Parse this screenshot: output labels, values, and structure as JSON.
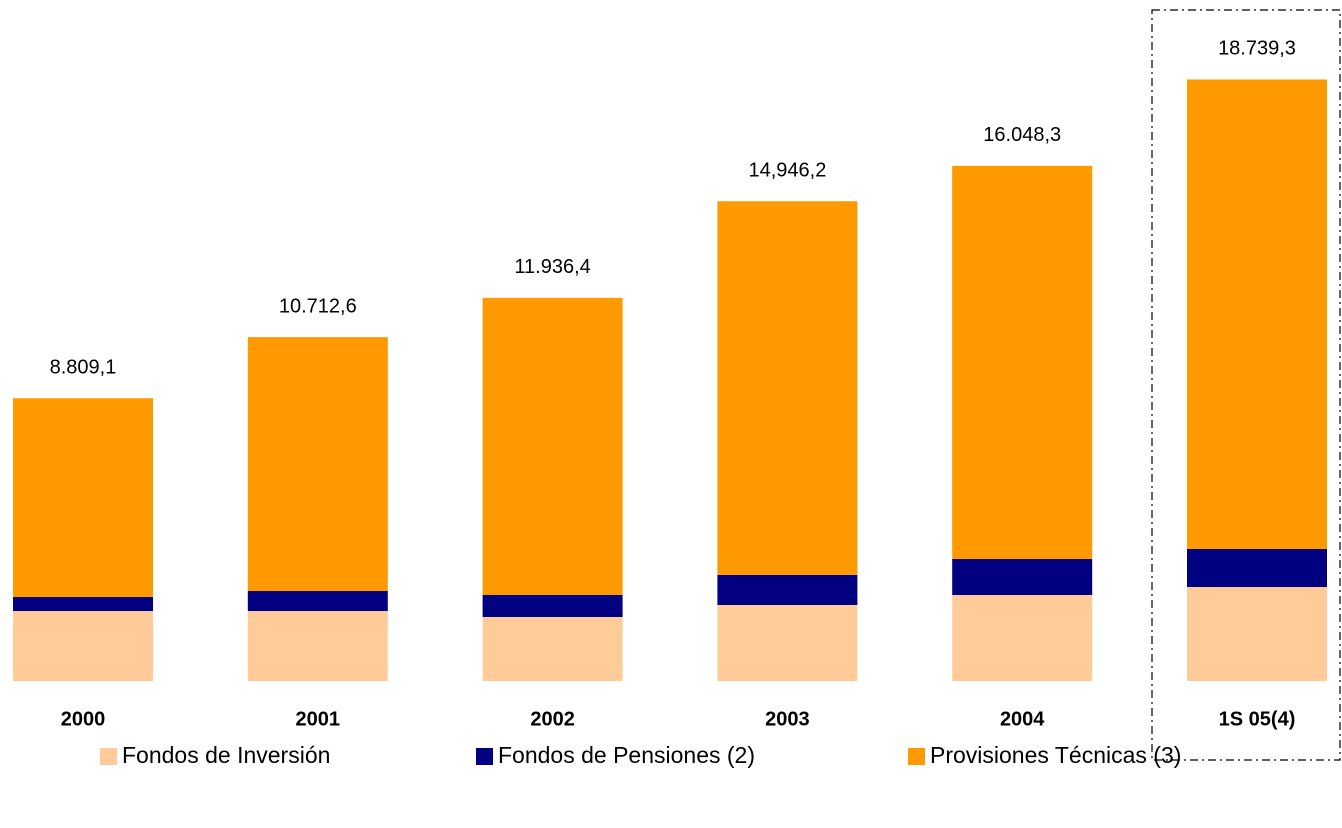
{
  "chart_data": {
    "type": "stacked_bar",
    "categories": [
      "2000",
      "2001",
      "2002",
      "2003",
      "2004",
      "1S 05(4)"
    ],
    "series": [
      {
        "name": "Fondos de Inversión",
        "color": "#ffcc99",
        "values": [
          2180,
          2180,
          1994,
          2368,
          2679,
          2928
        ]
      },
      {
        "name": "Fondos de Pensiones (2)",
        "color": "#000080",
        "values": [
          436,
          623,
          685,
          935,
          1121,
          1184
        ]
      },
      {
        "name": "Provisiones Técnicas (3)",
        "color": "#ff9900",
        "values": [
          6193.1,
          7909.6,
          9257.4,
          11643.2,
          12248.3,
          14627.3
        ]
      }
    ],
    "totals": {
      "values": [
        8809.1,
        10712.6,
        11936.4,
        14946.2,
        16048.3,
        18739.3
      ],
      "value_labels": [
        "8.809,1",
        "10.712,6",
        "11.936,4",
        "14,946,2",
        "16.048,3",
        "18.739,3"
      ]
    },
    "ylim": [
      0,
      20000
    ],
    "legend": "bottom"
  }
}
